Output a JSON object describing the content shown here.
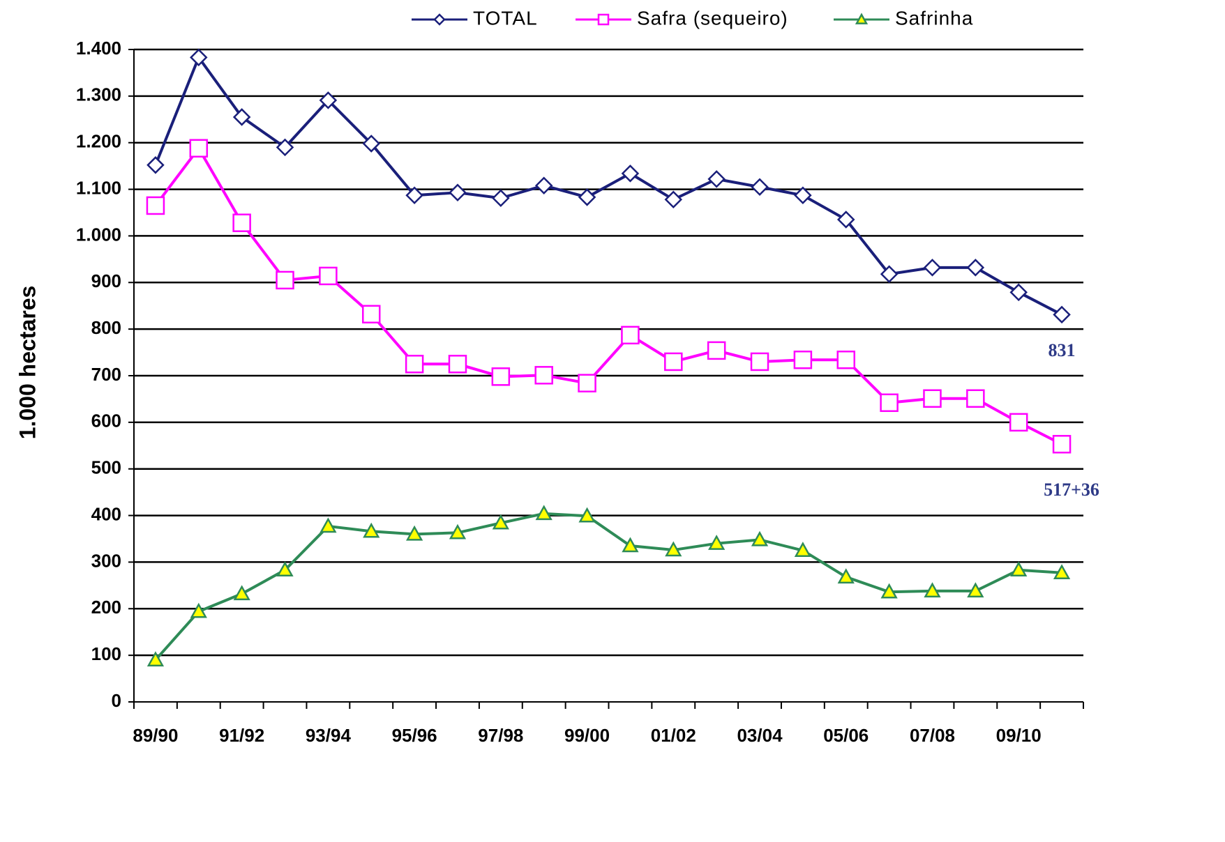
{
  "chart_data": {
    "type": "line",
    "y_label": "1.000 hectares",
    "categories": [
      "89/90",
      null,
      "91/92",
      null,
      "93/94",
      null,
      "95/96",
      null,
      "97/98",
      null,
      "99/00",
      null,
      "01/02",
      null,
      "03/04",
      null,
      "05/06",
      null,
      "07/08",
      null,
      "09/10",
      null
    ],
    "series": [
      {
        "name": "TOTAL",
        "color": "#1a1f7a",
        "marker": "diamond",
        "marker_fill": "#ffffff",
        "values": [
          1152,
          1383,
          1255,
          1190,
          1291,
          1198,
          1087,
          1093,
          1081,
          1108,
          1083,
          1134,
          1078,
          1122,
          1105,
          1087,
          1035,
          918,
          932,
          932,
          879,
          831
        ]
      },
      {
        "name": "Safra (sequeiro)",
        "color": "#ff00ff",
        "marker": "square",
        "marker_fill": "#ffffff",
        "values": [
          1065,
          1188,
          1028,
          905,
          914,
          832,
          725,
          725,
          698,
          701,
          684,
          787,
          730,
          754,
          730,
          734,
          734,
          642,
          651,
          651,
          600,
          553
        ]
      },
      {
        "name": "Safrinha",
        "color": "#2e8b57",
        "marker": "triangle",
        "marker_fill": "#ffff00",
        "values": [
          90,
          194,
          232,
          283,
          377,
          366,
          360,
          363,
          384,
          404,
          399,
          335,
          326,
          340,
          348,
          325,
          268,
          236,
          238,
          238,
          283,
          277
        ]
      }
    ],
    "annotations": [
      {
        "text": "831"
      },
      {
        "text": "517+36"
      }
    ],
    "ylim": [
      0,
      1400
    ],
    "yticks": [
      0,
      100,
      200,
      300,
      400,
      500,
      600,
      700,
      800,
      900,
      {
        "value": 1000,
        "label": "1.000"
      },
      {
        "value": 1100,
        "label": "1.100"
      },
      {
        "value": 1200,
        "label": "1.200"
      },
      {
        "value": 1300,
        "label": "1.300"
      },
      {
        "value": 1400,
        "label": "1.400"
      }
    ],
    "grid": true,
    "legend": "top"
  }
}
